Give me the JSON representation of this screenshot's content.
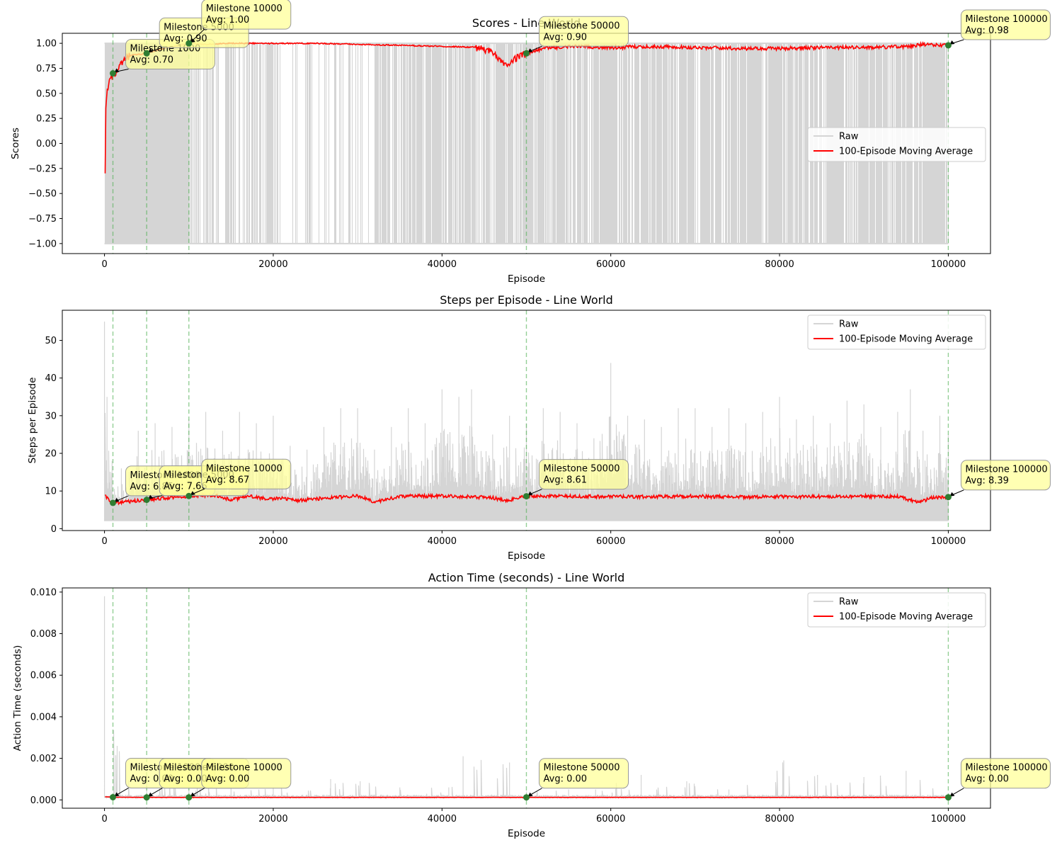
{
  "colors": {
    "raw": "#d5d5d5",
    "moving_average": "#ff0000",
    "milestone_line": "#4caf50",
    "milestone_marker": "#2e7d32",
    "annotation_fill": "#ffff99",
    "annotation_edge": "#999999"
  },
  "chart_data": [
    {
      "type": "line",
      "title": "Scores - Line World",
      "xlabel": "Episode",
      "ylabel": "Scores",
      "xlim": [
        -5000,
        105000
      ],
      "ylim": [
        -1.1,
        1.1
      ],
      "xticks": [
        0,
        20000,
        40000,
        60000,
        80000,
        100000
      ],
      "xtick_labels": [
        "0",
        "20000",
        "40000",
        "60000",
        "80000",
        "100000"
      ],
      "yticks": [
        -1.0,
        -0.75,
        -0.5,
        -0.25,
        0.0,
        0.25,
        0.5,
        0.75,
        1.0
      ],
      "ytick_labels": [
        "−1.00",
        "−0.75",
        "−0.50",
        "−0.25",
        "0.00",
        "0.25",
        "0.50",
        "0.75",
        "1.00"
      ],
      "grid": false,
      "legend_position": "center-right",
      "series": [
        {
          "name": "Raw",
          "style": "band",
          "min": -1.0,
          "max": 1.0,
          "note_values": "raw episodes alternate between -1.00 and 1.00; dense failures until ~21000, sparse 21000-32000, dense again 32000-100000"
        },
        {
          "name": "100-Episode Moving Average",
          "style": "line",
          "x": [
            0,
            100,
            300,
            600,
            1000,
            1500,
            2000,
            3000,
            5000,
            7000,
            10000,
            12000,
            15000,
            20000,
            25000,
            30000,
            35000,
            40000,
            44000,
            46000,
            47500,
            48500,
            50000,
            52000,
            55000,
            60000,
            65000,
            70000,
            75000,
            80000,
            85000,
            90000,
            95000,
            97000,
            100000
          ],
          "y": [
            -0.62,
            0.3,
            0.55,
            0.62,
            0.7,
            0.72,
            0.8,
            0.88,
            0.9,
            0.95,
            1.0,
            0.99,
            1.0,
            1.0,
            1.0,
            0.99,
            0.98,
            0.97,
            0.96,
            0.92,
            0.78,
            0.85,
            0.9,
            0.95,
            0.97,
            0.96,
            0.97,
            0.96,
            0.95,
            0.95,
            0.96,
            0.96,
            0.97,
            0.99,
            0.98
          ]
        }
      ],
      "milestones": [
        {
          "x": 1000,
          "y": 0.7,
          "label": "Milestone 1000",
          "avg": "Avg: 0.70"
        },
        {
          "x": 5000,
          "y": 0.9,
          "label": "Milestone 5000",
          "avg": "Avg: 0.90"
        },
        {
          "x": 10000,
          "y": 1.0,
          "label": "Milestone 10000",
          "avg": "Avg: 1.00"
        },
        {
          "x": 50000,
          "y": 0.9,
          "label": "Milestone 50000",
          "avg": "Avg: 0.90"
        },
        {
          "x": 100000,
          "y": 0.98,
          "label": "Milestone 100000",
          "avg": "Avg: 0.98"
        }
      ]
    },
    {
      "type": "line",
      "title": "Steps per Episode - Line World",
      "xlabel": "Episode",
      "ylabel": "Steps per Episode",
      "xlim": [
        -5000,
        105000
      ],
      "ylim": [
        -0.5,
        58
      ],
      "xticks": [
        0,
        20000,
        40000,
        60000,
        80000,
        100000
      ],
      "xtick_labels": [
        "0",
        "20000",
        "40000",
        "60000",
        "80000",
        "100000"
      ],
      "yticks": [
        0,
        10,
        20,
        30,
        40,
        50
      ],
      "ytick_labels": [
        "0",
        "10",
        "20",
        "30",
        "40",
        "50"
      ],
      "grid": false,
      "legend_position": "top-right",
      "series": [
        {
          "name": "Raw",
          "style": "spikes",
          "x": [
            0,
            300,
            900,
            2000,
            4000,
            6000,
            8000,
            10000,
            12000,
            14000,
            16000,
            18000,
            20000,
            22000,
            24000,
            26000,
            28000,
            30000,
            32000,
            34000,
            36000,
            38000,
            40000,
            42000,
            43500,
            46000,
            48000,
            50000,
            52000,
            54000,
            56000,
            58000,
            60000,
            62000,
            64000,
            66000,
            68000,
            70000,
            72000,
            74000,
            76000,
            78000,
            80000,
            82000,
            84000,
            86000,
            88000,
            90000,
            92000,
            94000,
            95500,
            97000,
            99000,
            100000
          ],
          "y": [
            55,
            35,
            18,
            16,
            26,
            28,
            27,
            29,
            31,
            26,
            31,
            28,
            30,
            22,
            21,
            27,
            32,
            32,
            21,
            27,
            32,
            28,
            37,
            35,
            37,
            25,
            30,
            28,
            32,
            31,
            28,
            24,
            44,
            30,
            29,
            27,
            32,
            32,
            27,
            32,
            28,
            31,
            35,
            29,
            30,
            28,
            34,
            33,
            27,
            31,
            37,
            26,
            30,
            25
          ],
          "min": 2
        },
        {
          "name": "100-Episode Moving Average",
          "style": "line",
          "x": [
            0,
            500,
            1000,
            3000,
            5000,
            8000,
            10000,
            13000,
            15000,
            17000,
            19000,
            21000,
            23000,
            26000,
            30000,
            32000,
            35000,
            40000,
            44000,
            46000,
            47500,
            50000,
            55000,
            60000,
            65000,
            70000,
            75000,
            80000,
            85000,
            90000,
            94000,
            95500,
            96500,
            98000,
            100000
          ],
          "y": [
            9,
            7.5,
            6.85,
            7.2,
            7.66,
            8.3,
            8.67,
            8.9,
            7.6,
            8.8,
            7.9,
            8.0,
            7.5,
            8.1,
            8.7,
            7.1,
            8.6,
            8.7,
            8.4,
            8.2,
            7.4,
            8.61,
            8.6,
            8.5,
            8.5,
            8.6,
            8.4,
            8.5,
            8.5,
            8.6,
            8.5,
            7.6,
            6.9,
            8.2,
            8.39
          ]
        }
      ],
      "milestones": [
        {
          "x": 1000,
          "y": 6.85,
          "label": "Milestone 1000",
          "avg": "Avg: 6.85"
        },
        {
          "x": 5000,
          "y": 7.66,
          "label": "Milestone 5000",
          "avg": "Avg: 7.66"
        },
        {
          "x": 10000,
          "y": 8.67,
          "label": "Milestone 10000",
          "avg": "Avg: 8.67"
        },
        {
          "x": 50000,
          "y": 8.61,
          "label": "Milestone 50000",
          "avg": "Avg: 8.61"
        },
        {
          "x": 100000,
          "y": 8.39,
          "label": "Milestone 100000",
          "avg": "Avg: 8.39"
        }
      ]
    },
    {
      "type": "line",
      "title": "Action Time (seconds) - Line World",
      "xlabel": "Episode",
      "ylabel": "Action Time (seconds)",
      "xlim": [
        -5000,
        105000
      ],
      "ylim": [
        -0.0004,
        0.0102
      ],
      "xticks": [
        0,
        20000,
        40000,
        60000,
        80000,
        100000
      ],
      "xtick_labels": [
        "0",
        "20000",
        "40000",
        "60000",
        "80000",
        "100000"
      ],
      "yticks": [
        0.0,
        0.002,
        0.004,
        0.006,
        0.008,
        0.01
      ],
      "ytick_labels": [
        "0.000",
        "0.002",
        "0.004",
        "0.006",
        "0.008",
        "0.010"
      ],
      "grid": false,
      "legend_position": "top-right",
      "series": [
        {
          "name": "Raw",
          "style": "spikes",
          "x": [
            0,
            1500,
            5000,
            10000,
            15000,
            20000,
            26800,
            30300,
            35000,
            40800,
            42500,
            48000,
            50000,
            55000,
            58200,
            63600,
            69000,
            74000,
            80500,
            84500,
            90000,
            95000,
            100000
          ],
          "y": [
            0.0098,
            0.0026,
            0.0011,
            0.0008,
            0.0006,
            0.0006,
            0.001,
            0.0009,
            0.0006,
            0.0006,
            0.0021,
            0.0018,
            0.0004,
            0.0005,
            0.0005,
            0.0012,
            0.0009,
            0.0005,
            0.0019,
            0.0012,
            0.0011,
            0.0014,
            0.0003
          ],
          "min": 0.0001
        },
        {
          "name": "100-Episode Moving Average",
          "style": "line",
          "x": [
            0,
            1000,
            5000,
            10000,
            50000,
            100000
          ],
          "y": [
            0.00015,
            0.00013,
            0.00012,
            0.00012,
            0.00012,
            0.00012
          ]
        }
      ],
      "milestones": [
        {
          "x": 1000,
          "y": 0.00013,
          "label": "Milestone 1000",
          "avg": "Avg: 0.00"
        },
        {
          "x": 5000,
          "y": 0.00012,
          "label": "Milestone 5000",
          "avg": "Avg: 0.00"
        },
        {
          "x": 10000,
          "y": 0.00012,
          "label": "Milestone 10000",
          "avg": "Avg: 0.00"
        },
        {
          "x": 50000,
          "y": 0.00012,
          "label": "Milestone 50000",
          "avg": "Avg: 0.00"
        },
        {
          "x": 100000,
          "y": 0.00012,
          "label": "Milestone 100000",
          "avg": "Avg: 0.00"
        }
      ]
    }
  ]
}
